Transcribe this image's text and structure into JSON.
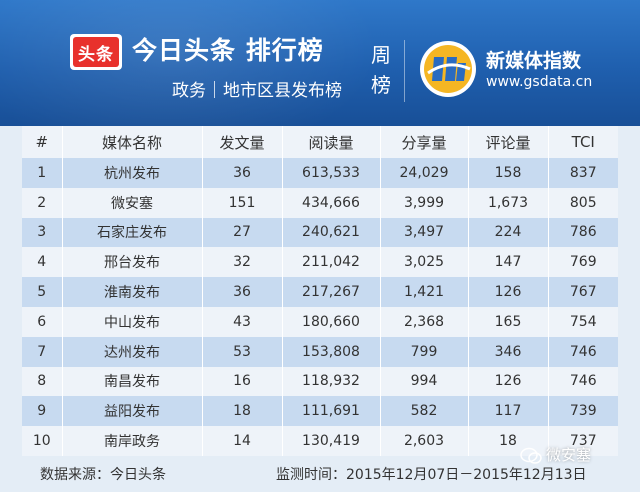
{
  "header": {
    "logo_text": "头条",
    "title": "今日头条 排行榜",
    "subtitle": "政务｜地市区县发布榜",
    "period_type": "周榜",
    "partner_name": "新媒体指数",
    "partner_url": "www.gsdata.cn"
  },
  "table": {
    "columns": [
      "#",
      "媒体名称",
      "发文量",
      "阅读量",
      "分享量",
      "评论量",
      "TCI"
    ],
    "rows": [
      [
        "1",
        "杭州发布",
        "36",
        "613,533",
        "24,029",
        "158",
        "837"
      ],
      [
        "2",
        "微安塞",
        "151",
        "434,666",
        "3,999",
        "1,673",
        "805"
      ],
      [
        "3",
        "石家庄发布",
        "27",
        "240,621",
        "3,497",
        "224",
        "786"
      ],
      [
        "4",
        "邢台发布",
        "32",
        "211,042",
        "3,025",
        "147",
        "769"
      ],
      [
        "5",
        "淮南发布",
        "36",
        "217,267",
        "1,421",
        "126",
        "767"
      ],
      [
        "6",
        "中山发布",
        "43",
        "180,660",
        "2,368",
        "165",
        "754"
      ],
      [
        "7",
        "达州发布",
        "53",
        "153,808",
        "799",
        "346",
        "746"
      ],
      [
        "8",
        "南昌发布",
        "16",
        "118,932",
        "994",
        "126",
        "746"
      ],
      [
        "9",
        "益阳发布",
        "18",
        "111,691",
        "582",
        "117",
        "739"
      ],
      [
        "10",
        "南岸政务",
        "14",
        "130,419",
        "2,603",
        "18",
        "737"
      ]
    ]
  },
  "footer": {
    "source": "数据来源：今日头条",
    "period": "监测时间：2015年12月07日－2015年12月13日"
  },
  "watermark": "微安塞",
  "colors": {
    "header_blue": "#1f5fae",
    "row_stripe": "#c7daf0",
    "logo_red": "#e8312c"
  }
}
